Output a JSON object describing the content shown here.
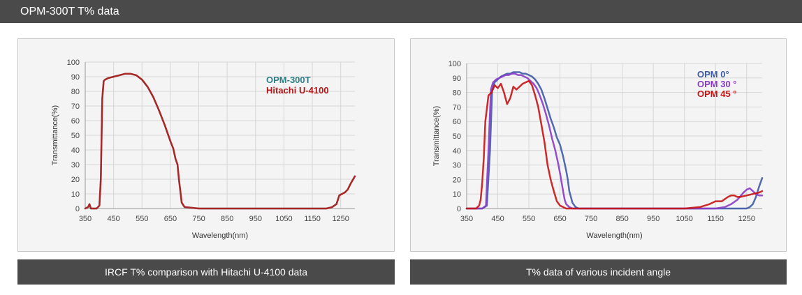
{
  "header": {
    "title": "OPM-300T T% data"
  },
  "captions": {
    "left": "IRCF T% comparison with Hitachi U-4100 data",
    "right": "T% data of various incident angle"
  },
  "colors": {
    "header_bg": "#4a4a4a",
    "opm300t": "#2e7f86",
    "hitachi": "#b01a1a",
    "opm0": "#3f5aa6",
    "opm30": "#8a3cc8",
    "opm45": "#c81414"
  },
  "chart_data": [
    {
      "type": "line",
      "title": "",
      "xlabel": "Wavelength(nm)",
      "ylabel": "Transmittance(%)",
      "xlim": [
        350,
        1300
      ],
      "ylim": [
        0,
        100
      ],
      "xticks": [
        350,
        450,
        550,
        650,
        750,
        850,
        950,
        1050,
        1150,
        1250
      ],
      "yticks": [
        0,
        10,
        20,
        30,
        40,
        50,
        60,
        70,
        80,
        90,
        100
      ],
      "grid": true,
      "legend_position": "top-right",
      "series": [
        {
          "name": "OPM-300T",
          "color": "#2e7f86",
          "x": [
            350,
            360,
            365,
            370,
            378,
            390,
            400,
            405,
            410,
            415,
            420,
            430,
            450,
            470,
            490,
            510,
            530,
            550,
            570,
            590,
            610,
            630,
            650,
            660,
            668,
            675,
            680,
            690,
            700,
            750,
            850,
            950,
            1050,
            1150,
            1200,
            1220,
            1235,
            1245,
            1255,
            1265,
            1275,
            1285,
            1300
          ],
          "y": [
            0,
            1,
            3,
            0,
            0,
            0,
            2,
            20,
            75,
            87,
            88,
            89,
            90,
            91,
            92,
            92,
            91,
            88,
            83,
            76,
            67,
            57,
            46,
            41,
            34,
            30,
            20,
            4,
            1,
            0,
            0,
            0,
            0,
            0,
            0,
            1,
            3,
            9,
            10,
            11,
            13,
            17,
            22
          ]
        },
        {
          "name": "Hitachi U-4100",
          "color": "#b01a1a",
          "x": [
            350,
            360,
            365,
            370,
            378,
            390,
            400,
            405,
            410,
            415,
            420,
            430,
            450,
            470,
            490,
            510,
            530,
            550,
            570,
            590,
            610,
            630,
            650,
            660,
            668,
            675,
            680,
            690,
            700,
            750,
            850,
            950,
            1050,
            1150,
            1200,
            1220,
            1235,
            1245,
            1255,
            1265,
            1275,
            1285,
            1300
          ],
          "y": [
            0,
            1,
            3,
            0,
            0,
            0,
            2,
            20,
            75,
            87,
            88,
            89,
            90,
            91,
            92,
            92,
            91,
            88,
            83,
            76,
            67,
            57,
            46,
            41,
            34,
            30,
            20,
            4,
            1,
            0,
            0,
            0,
            0,
            0,
            0,
            1,
            3,
            9,
            10,
            11,
            13,
            17,
            22
          ]
        }
      ]
    },
    {
      "type": "line",
      "title": "",
      "xlabel": "Wavelength(nm)",
      "ylabel": "Transmittance(%)",
      "xlim": [
        350,
        1300
      ],
      "ylim": [
        0,
        100
      ],
      "xticks": [
        350,
        450,
        550,
        650,
        750,
        850,
        950,
        1050,
        1150,
        1250
      ],
      "yticks": [
        0,
        10,
        20,
        30,
        40,
        50,
        60,
        70,
        80,
        90,
        100
      ],
      "grid": true,
      "legend_position": "top-right",
      "series": [
        {
          "name": "OPM 0°",
          "color": "#3f5aa6",
          "x": [
            350,
            400,
            415,
            425,
            432,
            440,
            450,
            460,
            470,
            480,
            490,
            500,
            510,
            520,
            530,
            540,
            550,
            560,
            570,
            580,
            590,
            600,
            610,
            620,
            630,
            640,
            650,
            660,
            670,
            675,
            680,
            690,
            700,
            710,
            720,
            800,
            900,
            1000,
            1100,
            1200,
            1230,
            1250,
            1260,
            1270,
            1280,
            1290,
            1300
          ],
          "y": [
            0,
            0,
            2,
            40,
            82,
            87,
            89,
            91,
            92,
            93,
            93,
            94,
            94,
            94,
            93,
            93,
            92,
            91,
            89,
            86,
            82,
            76,
            69,
            62,
            56,
            49,
            44,
            36,
            26,
            20,
            12,
            4,
            1,
            0,
            0,
            0,
            0,
            0,
            0,
            0,
            0,
            0,
            1,
            3,
            8,
            15,
            21
          ]
        },
        {
          "name": "OPM 30 °",
          "color": "#8a3cc8",
          "x": [
            350,
            400,
            412,
            420,
            428,
            435,
            445,
            455,
            465,
            475,
            485,
            495,
            505,
            515,
            525,
            535,
            545,
            555,
            565,
            575,
            585,
            595,
            605,
            615,
            625,
            635,
            645,
            652,
            660,
            665,
            670,
            680,
            690,
            700,
            800,
            900,
            1000,
            1100,
            1150,
            1180,
            1200,
            1220,
            1240,
            1250,
            1260,
            1270,
            1280,
            1290,
            1300
          ],
          "y": [
            0,
            0,
            2,
            40,
            82,
            87,
            89,
            90,
            91,
            92,
            92,
            93,
            93,
            92,
            92,
            91,
            90,
            88,
            86,
            83,
            78,
            72,
            65,
            57,
            48,
            40,
            30,
            22,
            12,
            6,
            3,
            1,
            0,
            0,
            0,
            0,
            0,
            0,
            0,
            1,
            3,
            6,
            11,
            13,
            14,
            12,
            10,
            9,
            9
          ]
        },
        {
          "name": "OPM 45 °",
          "color": "#c81414",
          "x": [
            350,
            380,
            390,
            395,
            400,
            405,
            410,
            420,
            430,
            440,
            450,
            460,
            470,
            480,
            490,
            500,
            510,
            520,
            530,
            540,
            550,
            560,
            570,
            580,
            590,
            600,
            610,
            620,
            630,
            640,
            650,
            660,
            670,
            700,
            800,
            900,
            1000,
            1050,
            1100,
            1130,
            1150,
            1170,
            1190,
            1200,
            1210,
            1220,
            1230,
            1250,
            1270,
            1290,
            1300
          ],
          "y": [
            0,
            0,
            2,
            6,
            18,
            35,
            60,
            78,
            80,
            85,
            83,
            86,
            80,
            72,
            76,
            84,
            82,
            84,
            86,
            87,
            88,
            85,
            78,
            70,
            58,
            46,
            30,
            20,
            12,
            5,
            2,
            1,
            0,
            0,
            0,
            0,
            0,
            0,
            1,
            3,
            5,
            5,
            8,
            9,
            9,
            8,
            8,
            9,
            10,
            11,
            12
          ]
        }
      ]
    }
  ]
}
